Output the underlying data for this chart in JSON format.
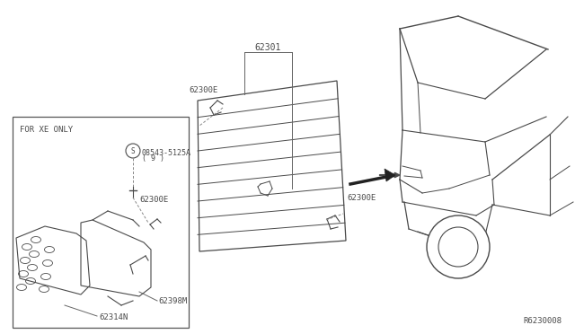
{
  "bg_color": "#ffffff",
  "line_color": "#4a4a4a",
  "ref_code": "R6230008",
  "box_label": "FOR XE ONLY",
  "parts": {
    "main_grille_label": "62301",
    "clip_left": "62300E",
    "clip_right": "62300E",
    "xe_clip": "62300E",
    "xe_bracket": "62398M",
    "xe_grille": "62314N",
    "xe_bolt_label": "08543-5125A",
    "xe_bolt_qty": "( 9 )"
  }
}
